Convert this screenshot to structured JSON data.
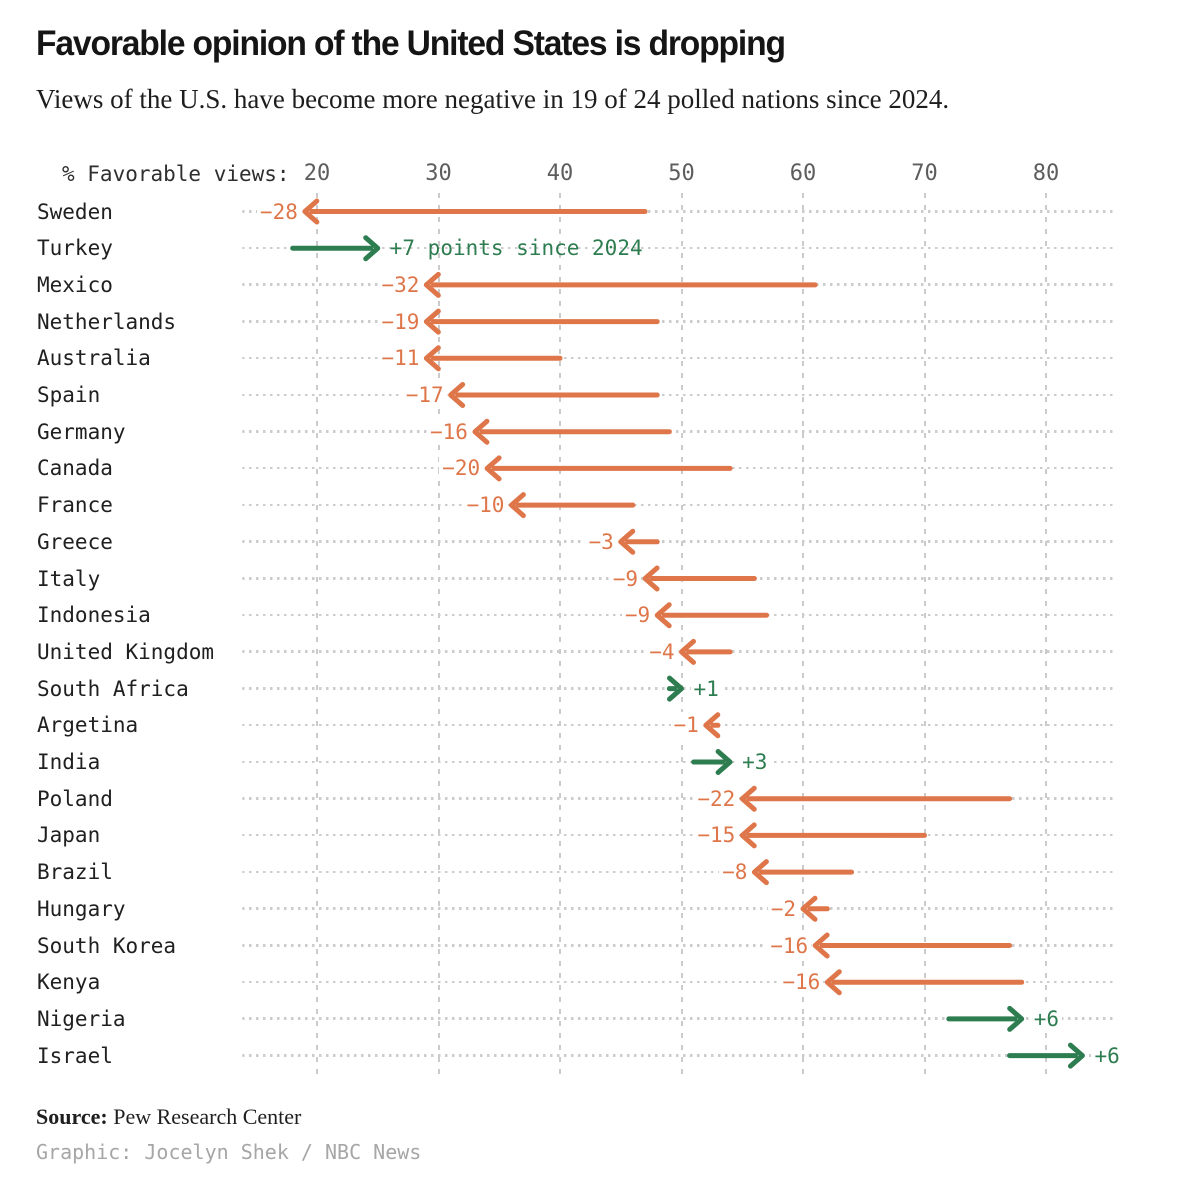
{
  "header": {
    "title": "Favorable opinion of the United States is dropping",
    "subtitle": "Views of the U.S. have become more negative in 19 of 24 polled nations since 2024."
  },
  "axis": {
    "label": "% Favorable views:"
  },
  "chart_data": {
    "type": "arrow",
    "title": "Favorable opinion of the United States is dropping",
    "xlabel": "% Favorable views",
    "x_ticks": [
      20,
      30,
      40,
      50,
      60,
      70,
      80
    ],
    "xlim": [
      20,
      80
    ],
    "grid": "vertical-dashed",
    "legend_note": "arrow from 2024 value to 2025 value; label = change in points since 2024",
    "rows": [
      {
        "country": "Sweden",
        "start": 47,
        "end": 19,
        "change": -28,
        "change_label": "−28"
      },
      {
        "country": "Turkey",
        "start": 18,
        "end": 25,
        "change": 7,
        "change_label": "+7 points since 2024"
      },
      {
        "country": "Mexico",
        "start": 61,
        "end": 29,
        "change": -32,
        "change_label": "−32"
      },
      {
        "country": "Netherlands",
        "start": 48,
        "end": 29,
        "change": -19,
        "change_label": "−19"
      },
      {
        "country": "Australia",
        "start": 40,
        "end": 29,
        "change": -11,
        "change_label": "−11"
      },
      {
        "country": "Spain",
        "start": 48,
        "end": 31,
        "change": -17,
        "change_label": "−17"
      },
      {
        "country": "Germany",
        "start": 49,
        "end": 33,
        "change": -16,
        "change_label": "−16"
      },
      {
        "country": "Canada",
        "start": 54,
        "end": 34,
        "change": -20,
        "change_label": "−20"
      },
      {
        "country": "France",
        "start": 46,
        "end": 36,
        "change": -10,
        "change_label": "−10"
      },
      {
        "country": "Greece",
        "start": 48,
        "end": 45,
        "change": -3,
        "change_label": "−3"
      },
      {
        "country": "Italy",
        "start": 56,
        "end": 47,
        "change": -9,
        "change_label": "−9"
      },
      {
        "country": "Indonesia",
        "start": 57,
        "end": 48,
        "change": -9,
        "change_label": "−9"
      },
      {
        "country": "United Kingdom",
        "start": 54,
        "end": 50,
        "change": -4,
        "change_label": "−4"
      },
      {
        "country": "South Africa",
        "start": 49,
        "end": 50,
        "change": 1,
        "change_label": "+1"
      },
      {
        "country": "Argetina",
        "start": 53,
        "end": 52,
        "change": -1,
        "change_label": "−1"
      },
      {
        "country": "India",
        "start": 51,
        "end": 54,
        "change": 3,
        "change_label": "+3"
      },
      {
        "country": "Poland",
        "start": 77,
        "end": 55,
        "change": -22,
        "change_label": "−22"
      },
      {
        "country": "Japan",
        "start": 70,
        "end": 55,
        "change": -15,
        "change_label": "−15"
      },
      {
        "country": "Brazil",
        "start": 64,
        "end": 56,
        "change": -8,
        "change_label": "−8"
      },
      {
        "country": "Hungary",
        "start": 62,
        "end": 60,
        "change": -2,
        "change_label": "−2"
      },
      {
        "country": "South Korea",
        "start": 77,
        "end": 61,
        "change": -16,
        "change_label": "−16"
      },
      {
        "country": "Kenya",
        "start": 78,
        "end": 62,
        "change": -16,
        "change_label": "−16"
      },
      {
        "country": "Nigeria",
        "start": 72,
        "end": 78,
        "change": 6,
        "change_label": "+6"
      },
      {
        "country": "Israel",
        "start": 77,
        "end": 83,
        "change": 6,
        "change_label": "+6"
      }
    ]
  },
  "colors": {
    "decline": "#DE764A",
    "increase": "#2E7D50",
    "grid": "#CBCBCB",
    "leader": "#CCCCCC",
    "tick_text": "#5D5D5D"
  },
  "footer": {
    "source_label": "Source:",
    "source_text": " Pew Research Center",
    "credit": "Graphic: Jocelyn Shek / NBC News"
  }
}
